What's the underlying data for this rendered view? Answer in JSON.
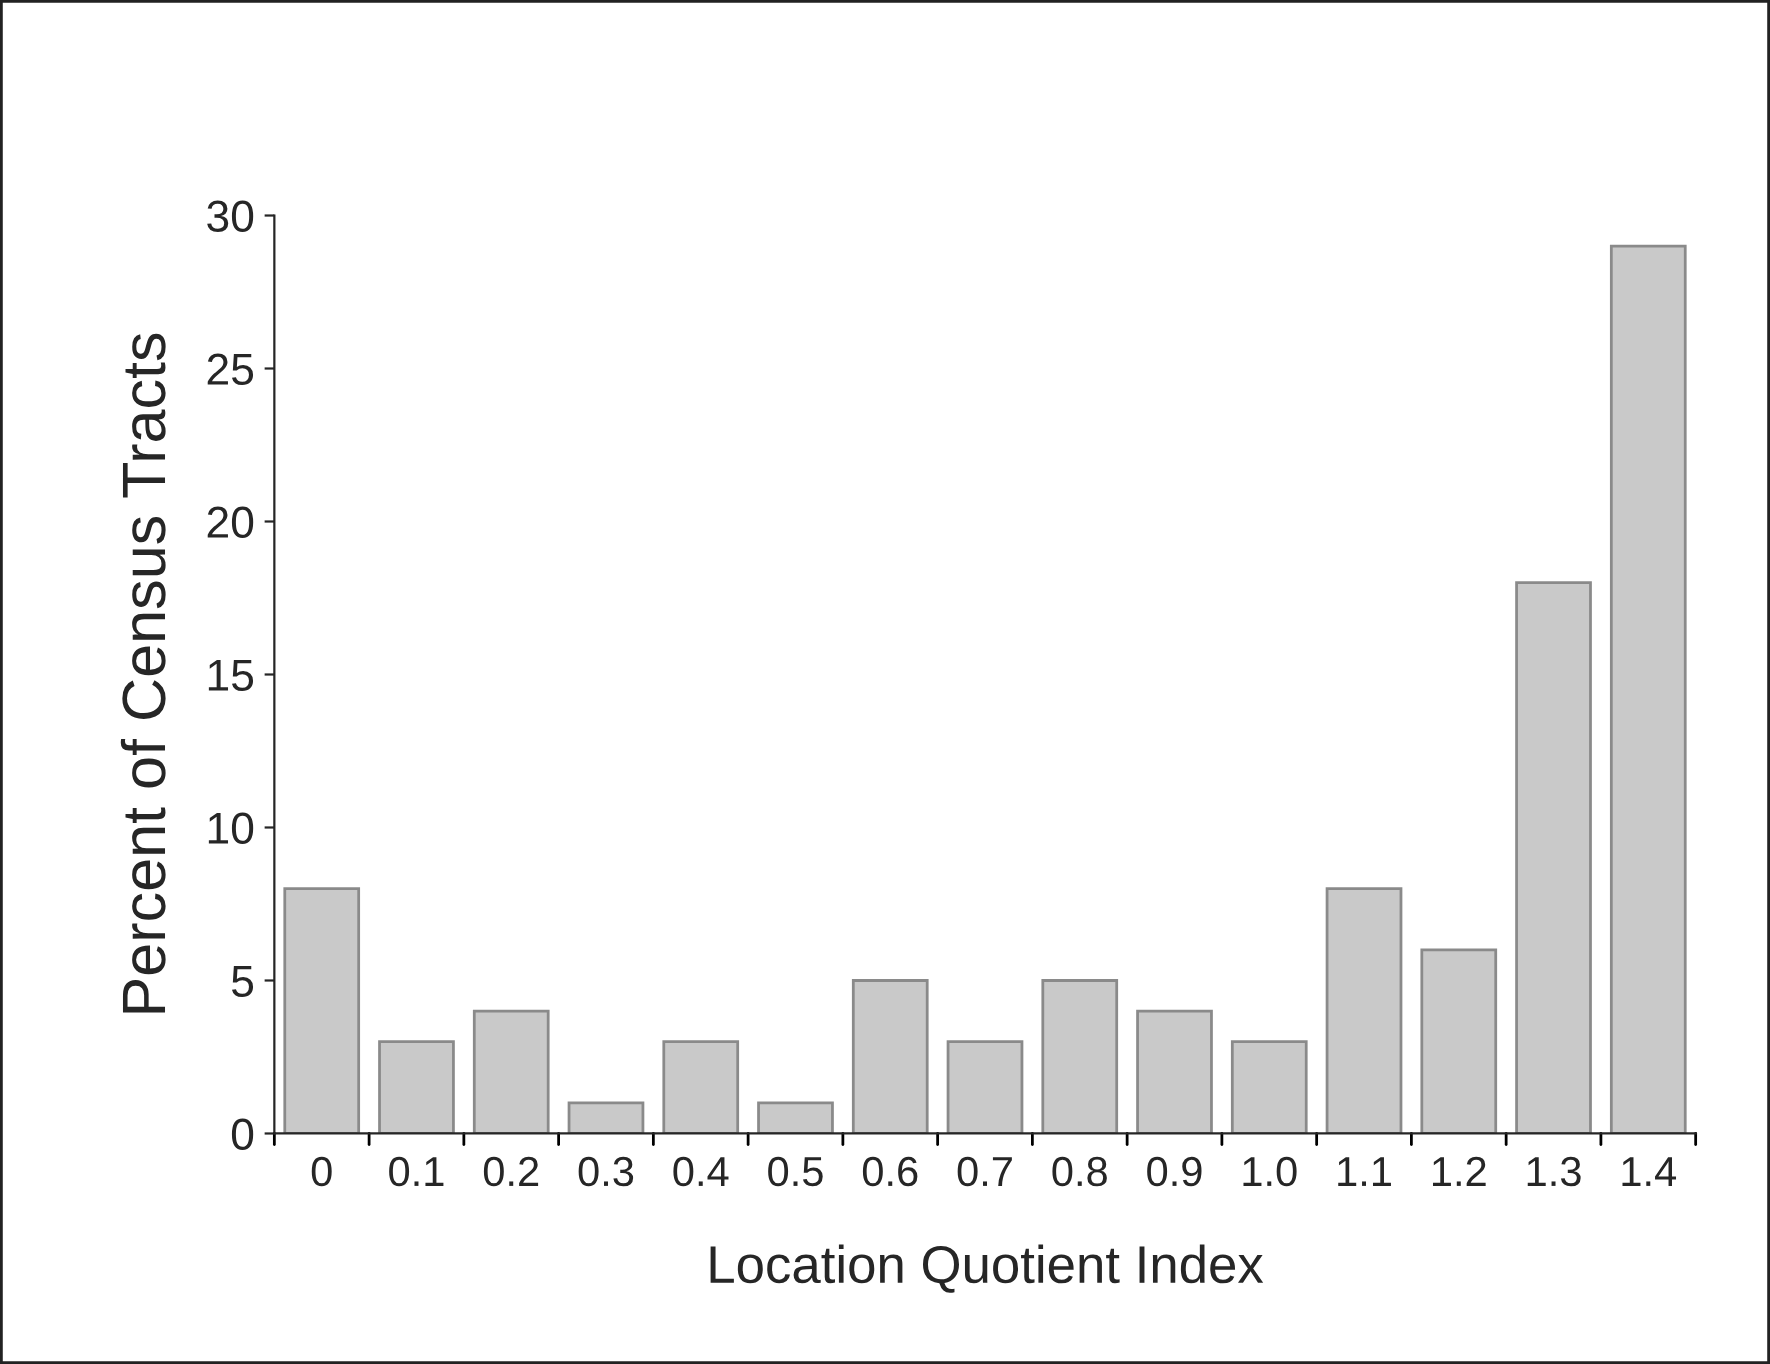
{
  "chart_data": {
    "type": "bar",
    "xlabel": "Location Quotient Index",
    "ylabel": "Percent of Census Tracts",
    "categories": [
      "0",
      "0.1",
      "0.2",
      "0.3",
      "0.4",
      "0.5",
      "0.6",
      "0.7",
      "0.8",
      "0.9",
      "1.0",
      "1.1",
      "1.2",
      "1.3",
      "1.4"
    ],
    "values": [
      8,
      3,
      4,
      1,
      3,
      1,
      5,
      3,
      5,
      4,
      3,
      8,
      6,
      18,
      29
    ],
    "color": "#c9c9c9",
    "ylim": [
      0,
      30
    ],
    "yticks": [
      0,
      5,
      10,
      15,
      20,
      25,
      30
    ],
    "grid": false,
    "legend": false
  }
}
